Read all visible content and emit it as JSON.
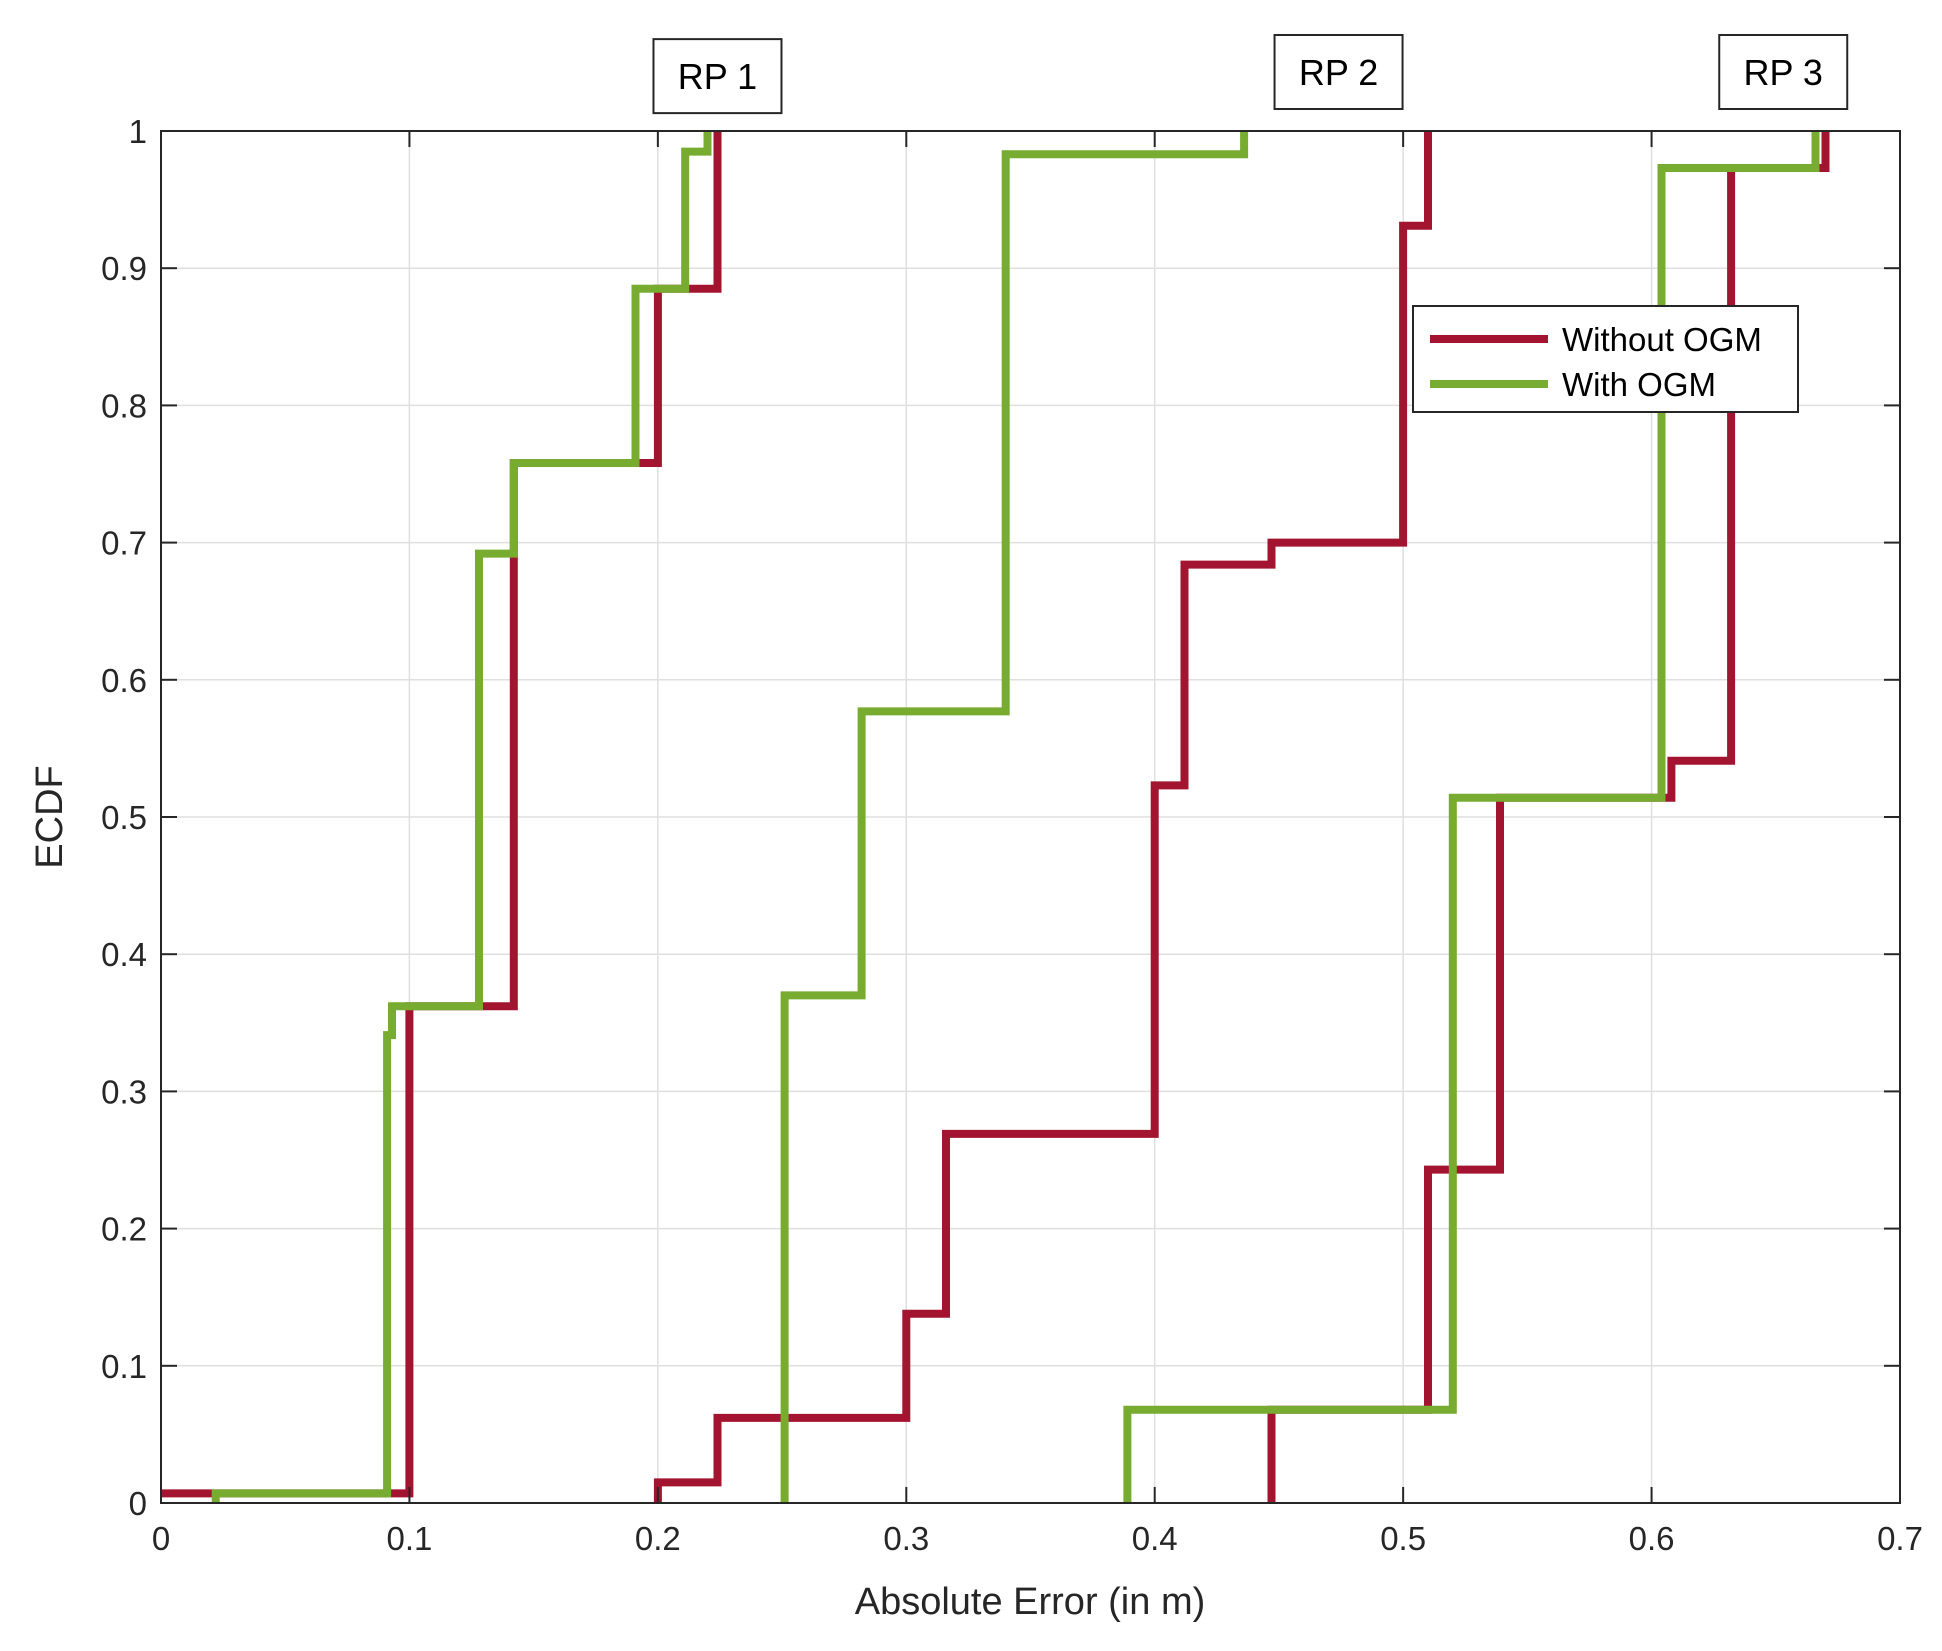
{
  "chart_data": {
    "type": "line",
    "step": true,
    "title": "",
    "xlabel": "Absolute Error (in m)",
    "ylabel": "ECDF",
    "xlim": [
      0,
      0.7
    ],
    "ylim": [
      0,
      1
    ],
    "xticks": [
      "0",
      "0.1",
      "0.2",
      "0.3",
      "0.4",
      "0.5",
      "0.6",
      "0.7"
    ],
    "yticks": [
      "0",
      "0.1",
      "0.2",
      "0.3",
      "0.4",
      "0.5",
      "0.6",
      "0.7",
      "0.8",
      "0.9",
      "1"
    ],
    "grid": true,
    "legend_position": "top-right",
    "annotations": [
      {
        "label": "RP 1",
        "x": 0.224,
        "y": 1.04
      },
      {
        "label": "RP 2",
        "x": 0.474,
        "y": 1.043
      },
      {
        "label": "RP 3",
        "x": 0.653,
        "y": 1.043
      }
    ],
    "series": [
      {
        "name": "Without OGM",
        "color": "#a2142f",
        "groups": [
          [
            [
              0,
              0.007
            ],
            [
              0.1,
              0.007
            ],
            [
              0.1,
              0.362
            ],
            [
              0.142,
              0.362
            ],
            [
              0.142,
              0.758
            ],
            [
              0.2,
              0.758
            ],
            [
              0.2,
              0.885
            ],
            [
              0.224,
              0.885
            ],
            [
              0.224,
              1.0
            ]
          ],
          [
            [
              0.2,
              0
            ],
            [
              0.2,
              0.015
            ],
            [
              0.224,
              0.015
            ],
            [
              0.224,
              0.062
            ],
            [
              0.3,
              0.062
            ],
            [
              0.3,
              0.138
            ],
            [
              0.316,
              0.138
            ],
            [
              0.316,
              0.269
            ],
            [
              0.4,
              0.269
            ],
            [
              0.4,
              0.523
            ],
            [
              0.412,
              0.523
            ],
            [
              0.412,
              0.684
            ],
            [
              0.447,
              0.684
            ],
            [
              0.447,
              0.7
            ],
            [
              0.5,
              0.7
            ],
            [
              0.5,
              0.931
            ],
            [
              0.51,
              0.931
            ],
            [
              0.51,
              1.0
            ]
          ],
          [
            [
              0.447,
              0
            ],
            [
              0.447,
              0.068
            ],
            [
              0.51,
              0.068
            ],
            [
              0.51,
              0.243
            ],
            [
              0.539,
              0.243
            ],
            [
              0.539,
              0.514
            ],
            [
              0.608,
              0.514
            ],
            [
              0.608,
              0.541
            ],
            [
              0.632,
              0.541
            ],
            [
              0.632,
              0.973
            ],
            [
              0.67,
              0.973
            ],
            [
              0.67,
              1.0
            ]
          ]
        ]
      },
      {
        "name": "With OGM",
        "color": "#77ac30",
        "groups": [
          [
            [
              0.022,
              0
            ],
            [
              0.022,
              0.007
            ],
            [
              0.091,
              0.007
            ],
            [
              0.091,
              0.341
            ],
            [
              0.093,
              0.341
            ],
            [
              0.093,
              0.362
            ],
            [
              0.128,
              0.362
            ],
            [
              0.128,
              0.692
            ],
            [
              0.142,
              0.692
            ],
            [
              0.142,
              0.758
            ],
            [
              0.191,
              0.758
            ],
            [
              0.191,
              0.885
            ],
            [
              0.211,
              0.885
            ],
            [
              0.211,
              0.985
            ],
            [
              0.22,
              0.985
            ],
            [
              0.22,
              1.0
            ]
          ],
          [
            [
              0.251,
              0
            ],
            [
              0.251,
              0.37
            ],
            [
              0.282,
              0.37
            ],
            [
              0.282,
              0.577
            ],
            [
              0.34,
              0.577
            ],
            [
              0.34,
              0.983
            ],
            [
              0.436,
              0.983
            ],
            [
              0.436,
              1.0
            ]
          ],
          [
            [
              0.389,
              0
            ],
            [
              0.389,
              0.068
            ],
            [
              0.52,
              0.068
            ],
            [
              0.52,
              0.514
            ],
            [
              0.604,
              0.514
            ],
            [
              0.604,
              0.973
            ],
            [
              0.666,
              0.973
            ],
            [
              0.666,
              1.0
            ]
          ]
        ]
      }
    ]
  }
}
